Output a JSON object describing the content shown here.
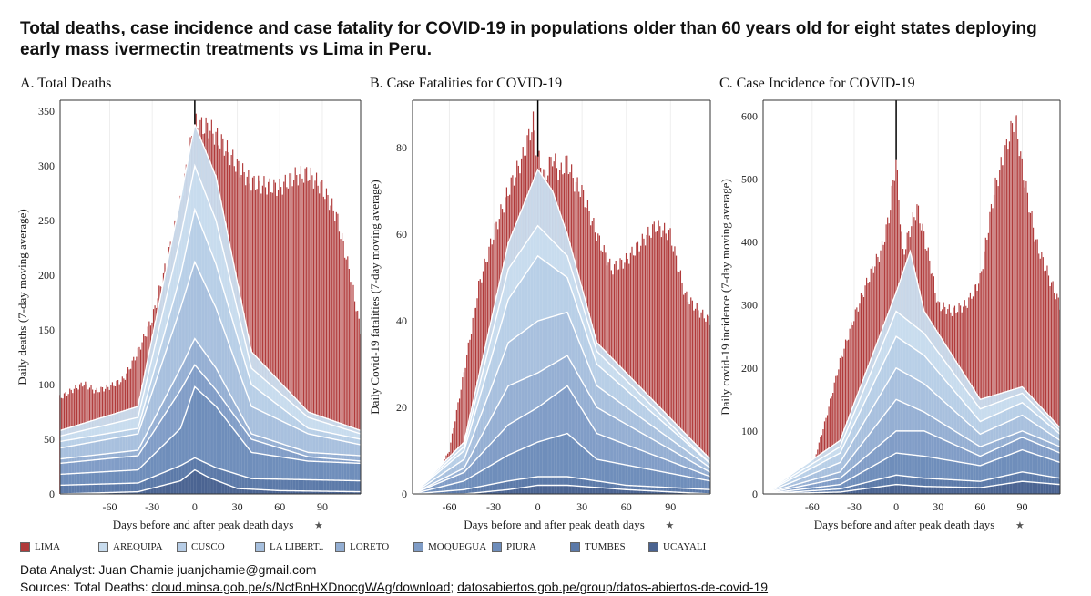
{
  "title": "Total deaths, case incidence and case fatality for COVID-19 in populations older than 60 years old for eight states deploying early mass ivermectin treatments vs Lima in Peru.",
  "colors": {
    "LIMA": "#b03a3a",
    "AREQUIPA": "#c8dcee",
    "CUSCO": "#b7cde6",
    "LA LIBERTAD": "#a6bfdd",
    "LORETO": "#93aed2",
    "MOQUEGUA": "#7f9cc6",
    "PIURA": "#6e8dbb",
    "TUMBES": "#5b79a8",
    "UCAYALI": "#4a6390"
  },
  "legend": [
    {
      "key": "LIMA",
      "label": "LIMA"
    },
    {
      "key": "AREQUIPA",
      "label": "AREQUIPA"
    },
    {
      "key": "CUSCO",
      "label": "CUSCO"
    },
    {
      "key": "LA LIBERTAD",
      "label": "LA LIBERT.."
    },
    {
      "key": "LORETO",
      "label": "LORETO"
    },
    {
      "key": "MOQUEGUA",
      "label": "MOQUEGUA"
    },
    {
      "key": "PIURA",
      "label": "PIURA"
    },
    {
      "key": "TUMBES",
      "label": "TUMBES"
    },
    {
      "key": "UCAYALI",
      "label": "UCAYALI"
    }
  ],
  "footer": {
    "analyst": "Data Analyst: Juan Chamie juanjchamie@gmail.com",
    "sources_prefix": "Sources: Total Deaths: ",
    "source1": "cloud.minsa.gob.pe/s/NctBnHXDnocgWAg/download",
    "separator": "; ",
    "source2": "datosabiertos.gob.pe/group/datos-abiertos-de-covid-19"
  },
  "chart_data": [
    {
      "type": "bar",
      "panel_title": "A. Total Deaths",
      "xlabel": "Days before and after peak death days",
      "ylabel": "Daily deaths (7-day moving average)",
      "xlim": [
        -95,
        117
      ],
      "ylim": [
        0,
        360
      ],
      "xticks": [
        -60,
        -30,
        0,
        30,
        60,
        90
      ],
      "yticks": [
        0,
        50,
        100,
        150,
        200,
        250,
        300,
        350
      ],
      "peak_line_x": 0,
      "lima_anchors": [
        [
          -95,
          88
        ],
        [
          -85,
          96
        ],
        [
          -78,
          101
        ],
        [
          -70,
          94
        ],
        [
          -60,
          98
        ],
        [
          -50,
          105
        ],
        [
          -40,
          130
        ],
        [
          -30,
          160
        ],
        [
          -20,
          210
        ],
        [
          -10,
          265
        ],
        [
          -2,
          325
        ],
        [
          0,
          338
        ],
        [
          10,
          335
        ],
        [
          20,
          320
        ],
        [
          30,
          300
        ],
        [
          40,
          285
        ],
        [
          50,
          282
        ],
        [
          60,
          280
        ],
        [
          70,
          290
        ],
        [
          80,
          293
        ],
        [
          90,
          280
        ],
        [
          100,
          255
        ],
        [
          110,
          200
        ],
        [
          117,
          150
        ]
      ],
      "stack_anchors": [
        [
          [
            -95,
            0
          ],
          [
            -40,
            2
          ],
          [
            -10,
            12
          ],
          [
            0,
            22
          ],
          [
            10,
            15
          ],
          [
            30,
            5
          ],
          [
            60,
            3
          ],
          [
            117,
            2
          ]
        ],
        [
          [
            -95,
            8
          ],
          [
            -40,
            10
          ],
          [
            -10,
            26
          ],
          [
            0,
            33
          ],
          [
            15,
            24
          ],
          [
            40,
            14
          ],
          [
            117,
            12
          ]
        ],
        [
          [
            -95,
            18
          ],
          [
            -40,
            22
          ],
          [
            -10,
            60
          ],
          [
            0,
            98
          ],
          [
            15,
            80
          ],
          [
            40,
            38
          ],
          [
            80,
            30
          ],
          [
            117,
            28
          ]
        ],
        [
          [
            -95,
            28
          ],
          [
            -40,
            35
          ],
          [
            -10,
            95
          ],
          [
            0,
            118
          ],
          [
            15,
            95
          ],
          [
            40,
            50
          ],
          [
            80,
            34
          ],
          [
            117,
            30
          ]
        ],
        [
          [
            -95,
            32
          ],
          [
            -40,
            40
          ],
          [
            -10,
            115
          ],
          [
            0,
            142
          ],
          [
            15,
            115
          ],
          [
            40,
            55
          ],
          [
            80,
            38
          ],
          [
            117,
            35
          ]
        ],
        [
          [
            -95,
            42
          ],
          [
            -40,
            55
          ],
          [
            -10,
            170
          ],
          [
            0,
            212
          ],
          [
            15,
            170
          ],
          [
            40,
            80
          ],
          [
            80,
            55
          ],
          [
            117,
            45
          ]
        ],
        [
          [
            -95,
            48
          ],
          [
            -40,
            60
          ],
          [
            -10,
            200
          ],
          [
            0,
            260
          ],
          [
            15,
            210
          ],
          [
            40,
            100
          ],
          [
            80,
            60
          ],
          [
            117,
            50
          ]
        ],
        [
          [
            -95,
            53
          ],
          [
            -40,
            70
          ],
          [
            -10,
            235
          ],
          [
            0,
            300
          ],
          [
            15,
            250
          ],
          [
            40,
            115
          ],
          [
            80,
            70
          ],
          [
            117,
            55
          ]
        ],
        [
          [
            -95,
            58
          ],
          [
            -40,
            80
          ],
          [
            -10,
            270
          ],
          [
            0,
            338
          ],
          [
            15,
            290
          ],
          [
            40,
            130
          ],
          [
            80,
            75
          ],
          [
            117,
            58
          ]
        ]
      ]
    },
    {
      "type": "bar",
      "panel_title": "B. Case Fatalities for COVID-19",
      "xlabel": "Days before and after peak death days",
      "ylabel": "Daily Covid-19 fatalities (7-day moving average)",
      "xlim": [
        -85,
        117
      ],
      "ylim": [
        0,
        91
      ],
      "xticks": [
        -60,
        -30,
        0,
        30,
        60,
        90
      ],
      "yticks": [
        0,
        20,
        40,
        60,
        80
      ],
      "peak_line_x": 0,
      "lima_anchors": [
        [
          -85,
          0
        ],
        [
          -72,
          2
        ],
        [
          -60,
          10
        ],
        [
          -50,
          28
        ],
        [
          -40,
          48
        ],
        [
          -30,
          60
        ],
        [
          -20,
          70
        ],
        [
          -10,
          78
        ],
        [
          -3,
          86
        ],
        [
          0,
          78
        ],
        [
          5,
          73
        ],
        [
          10,
          78
        ],
        [
          15,
          74
        ],
        [
          20,
          77
        ],
        [
          25,
          72
        ],
        [
          30,
          70
        ],
        [
          40,
          60
        ],
        [
          50,
          52
        ],
        [
          60,
          54
        ],
        [
          70,
          58
        ],
        [
          80,
          62
        ],
        [
          90,
          60
        ],
        [
          100,
          46
        ],
        [
          110,
          42
        ],
        [
          117,
          40
        ]
      ],
      "stack_anchors": [
        [
          [
            -85,
            0
          ],
          [
            -50,
            0
          ],
          [
            -20,
            1
          ],
          [
            0,
            2
          ],
          [
            20,
            2
          ],
          [
            60,
            1
          ],
          [
            117,
            0
          ]
        ],
        [
          [
            -85,
            0
          ],
          [
            -50,
            1
          ],
          [
            -20,
            3
          ],
          [
            0,
            4
          ],
          [
            20,
            4
          ],
          [
            60,
            2
          ],
          [
            117,
            1
          ]
        ],
        [
          [
            -85,
            0
          ],
          [
            -50,
            3
          ],
          [
            -20,
            9
          ],
          [
            0,
            12
          ],
          [
            20,
            14
          ],
          [
            40,
            8
          ],
          [
            117,
            3
          ]
        ],
        [
          [
            -85,
            0
          ],
          [
            -50,
            5
          ],
          [
            -20,
            16
          ],
          [
            0,
            20
          ],
          [
            20,
            25
          ],
          [
            40,
            14
          ],
          [
            117,
            4
          ]
        ],
        [
          [
            -85,
            0
          ],
          [
            -50,
            6
          ],
          [
            -20,
            25
          ],
          [
            0,
            28
          ],
          [
            20,
            32
          ],
          [
            40,
            20
          ],
          [
            117,
            5
          ]
        ],
        [
          [
            -85,
            0
          ],
          [
            -50,
            8
          ],
          [
            -20,
            35
          ],
          [
            0,
            40
          ],
          [
            20,
            42
          ],
          [
            40,
            25
          ],
          [
            117,
            6
          ]
        ],
        [
          [
            -85,
            0
          ],
          [
            -50,
            10
          ],
          [
            -20,
            45
          ],
          [
            0,
            55
          ],
          [
            20,
            50
          ],
          [
            40,
            30
          ],
          [
            117,
            7
          ]
        ],
        [
          [
            -85,
            0
          ],
          [
            -50,
            11
          ],
          [
            -20,
            52
          ],
          [
            0,
            62
          ],
          [
            20,
            55
          ],
          [
            40,
            33
          ],
          [
            117,
            7
          ]
        ],
        [
          [
            -85,
            0
          ],
          [
            -50,
            12
          ],
          [
            -20,
            58
          ],
          [
            0,
            75
          ],
          [
            10,
            70
          ],
          [
            20,
            60
          ],
          [
            40,
            35
          ],
          [
            117,
            8
          ]
        ]
      ]
    },
    {
      "type": "bar",
      "panel_title": "C. Case Incidence for COVID-19",
      "xlabel": "Days before and after peak death days",
      "ylabel": "Daily covid-19 incidence (7-day moving average)",
      "xlim": [
        -95,
        117
      ],
      "ylim": [
        0,
        625
      ],
      "xticks": [
        -60,
        -30,
        0,
        30,
        60,
        90
      ],
      "yticks": [
        0,
        100,
        200,
        300,
        400,
        500,
        600
      ],
      "peak_line_x": 0,
      "lima_anchors": [
        [
          -95,
          0
        ],
        [
          -75,
          5
        ],
        [
          -60,
          40
        ],
        [
          -50,
          120
        ],
        [
          -40,
          210
        ],
        [
          -30,
          280
        ],
        [
          -20,
          340
        ],
        [
          -10,
          390
        ],
        [
          -5,
          440
        ],
        [
          0,
          530
        ],
        [
          5,
          380
        ],
        [
          10,
          420
        ],
        [
          15,
          455
        ],
        [
          20,
          410
        ],
        [
          25,
          360
        ],
        [
          30,
          300
        ],
        [
          40,
          290
        ],
        [
          50,
          300
        ],
        [
          60,
          340
        ],
        [
          70,
          480
        ],
        [
          80,
          560
        ],
        [
          85,
          600
        ],
        [
          90,
          520
        ],
        [
          100,
          400
        ],
        [
          110,
          340
        ],
        [
          117,
          300
        ]
      ],
      "stack_anchors": [
        [
          [
            -95,
            0
          ],
          [
            -40,
            3
          ],
          [
            0,
            15
          ],
          [
            20,
            12
          ],
          [
            60,
            10
          ],
          [
            90,
            20
          ],
          [
            117,
            15
          ]
        ],
        [
          [
            -95,
            0
          ],
          [
            -40,
            8
          ],
          [
            0,
            30
          ],
          [
            20,
            25
          ],
          [
            60,
            20
          ],
          [
            90,
            35
          ],
          [
            117,
            25
          ]
        ],
        [
          [
            -95,
            0
          ],
          [
            -40,
            15
          ],
          [
            0,
            65
          ],
          [
            20,
            60
          ],
          [
            60,
            45
          ],
          [
            90,
            70
          ],
          [
            117,
            50
          ]
        ],
        [
          [
            -95,
            0
          ],
          [
            -40,
            25
          ],
          [
            0,
            100
          ],
          [
            20,
            100
          ],
          [
            60,
            60
          ],
          [
            90,
            90
          ],
          [
            117,
            65
          ]
        ],
        [
          [
            -95,
            0
          ],
          [
            -40,
            35
          ],
          [
            0,
            150
          ],
          [
            20,
            130
          ],
          [
            60,
            75
          ],
          [
            90,
            100
          ],
          [
            117,
            75
          ]
        ],
        [
          [
            -95,
            0
          ],
          [
            -40,
            50
          ],
          [
            0,
            200
          ],
          [
            20,
            175
          ],
          [
            60,
            95
          ],
          [
            90,
            125
          ],
          [
            117,
            85
          ]
        ],
        [
          [
            -95,
            0
          ],
          [
            -40,
            65
          ],
          [
            0,
            250
          ],
          [
            20,
            220
          ],
          [
            60,
            115
          ],
          [
            90,
            145
          ],
          [
            117,
            95
          ]
        ],
        [
          [
            -95,
            0
          ],
          [
            -40,
            75
          ],
          [
            0,
            290
          ],
          [
            20,
            255
          ],
          [
            60,
            135
          ],
          [
            90,
            160
          ],
          [
            117,
            100
          ]
        ],
        [
          [
            -95,
            0
          ],
          [
            -40,
            85
          ],
          [
            0,
            320
          ],
          [
            10,
            385
          ],
          [
            20,
            290
          ],
          [
            60,
            150
          ],
          [
            90,
            170
          ],
          [
            117,
            105
          ]
        ]
      ]
    }
  ]
}
